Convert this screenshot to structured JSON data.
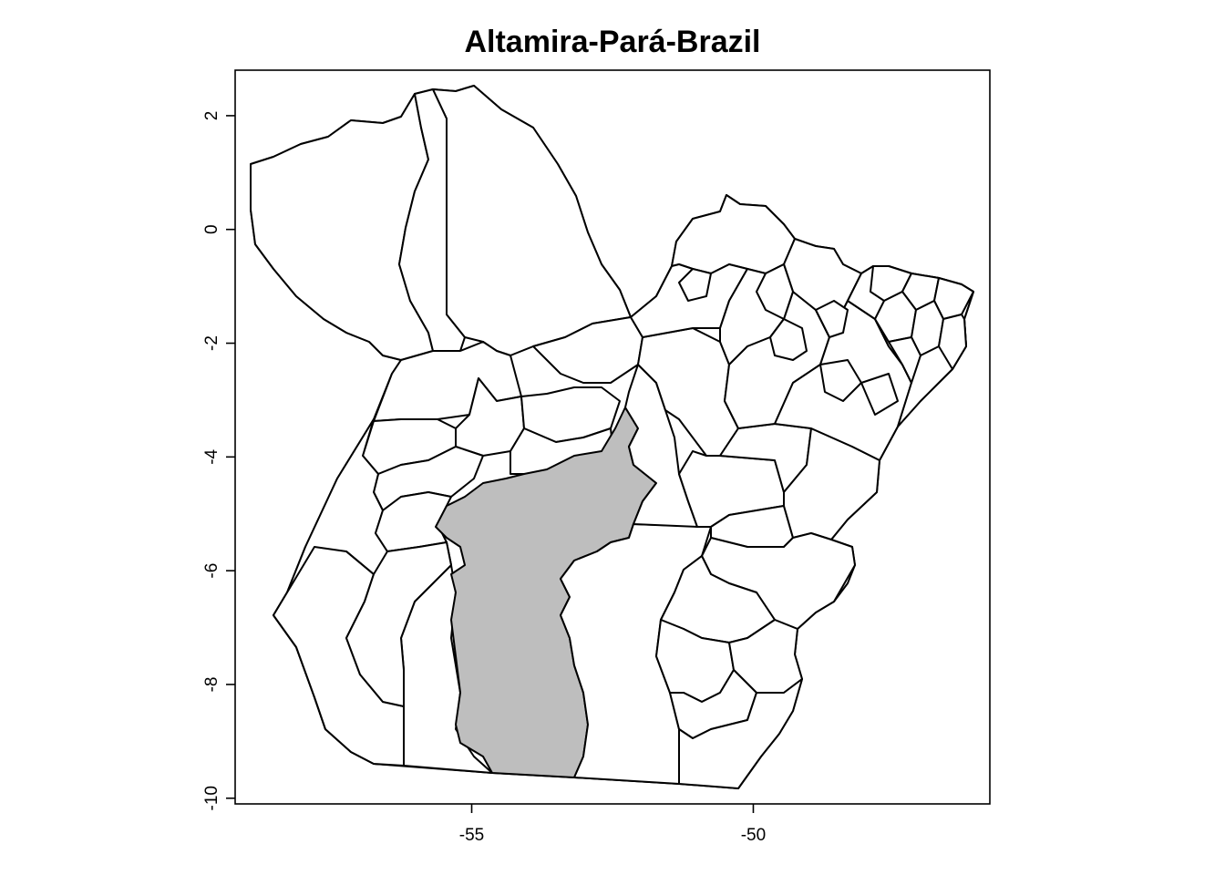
{
  "chart_data": {
    "type": "map",
    "title": "Altamira-Pará-Brazil",
    "highlight_region": "Altamira",
    "highlight_color": "#bebebe",
    "background_color": "#ffffff",
    "x_ticks": [
      {
        "value": -55,
        "label": "-55"
      },
      {
        "value": -50,
        "label": "-50"
      }
    ],
    "y_ticks": [
      {
        "value": 2,
        "label": "2"
      },
      {
        "value": 0,
        "label": "0"
      },
      {
        "value": -2,
        "label": "-2"
      },
      {
        "value": -4,
        "label": "-4"
      },
      {
        "value": -6,
        "label": "-6"
      },
      {
        "value": -8,
        "label": "-8"
      },
      {
        "value": -10,
        "label": "-10"
      }
    ],
    "xlim": [
      -59.2,
      -45.8
    ],
    "ylim": [
      -10.1,
      2.8
    ]
  }
}
